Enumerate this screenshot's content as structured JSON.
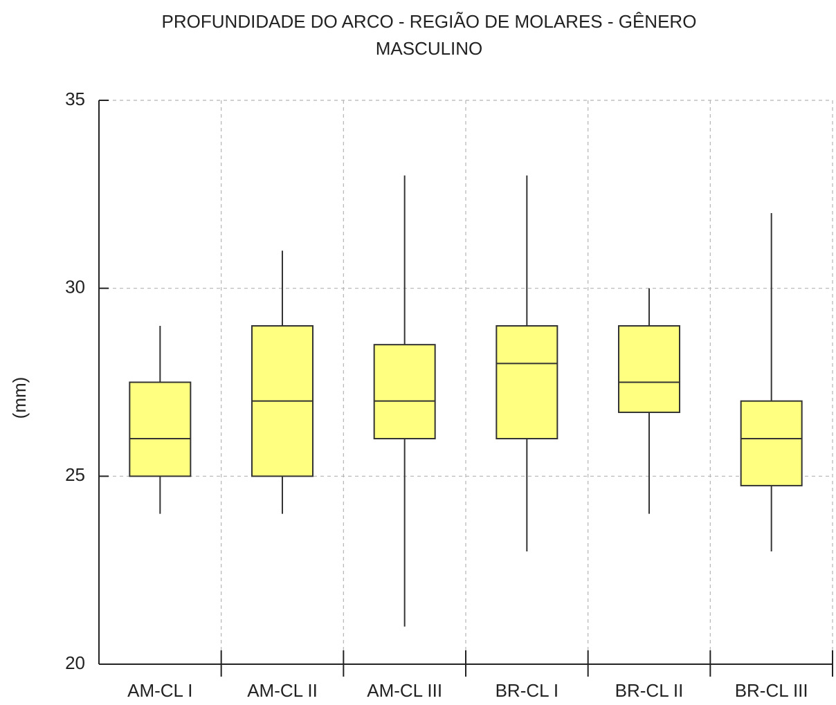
{
  "chart_data": {
    "type": "box",
    "title": [
      "PROFUNDIDADE DO ARCO - REGIÃO DE MOLARES - GÊNERO",
      "MASCULINO"
    ],
    "y_label": "(mm)",
    "categories": [
      "AM-CL I",
      "AM-CL II",
      "AM-CL III",
      "BR-CL I",
      "BR-CL II",
      "BR-CL III"
    ],
    "min": [
      24,
      24,
      21,
      23,
      24,
      23
    ],
    "q1": [
      25,
      25,
      26,
      26,
      26.7,
      24.75
    ],
    "median": [
      26,
      27,
      27,
      28,
      27.5,
      26
    ],
    "q3": [
      27.5,
      29,
      28.5,
      29,
      29,
      27
    ],
    "max": [
      29,
      31,
      33,
      33,
      30,
      32
    ],
    "color": "#ffff80",
    "ylim": [
      20,
      35
    ],
    "yticks": [
      20,
      25,
      30,
      35
    ],
    "grid": true
  }
}
